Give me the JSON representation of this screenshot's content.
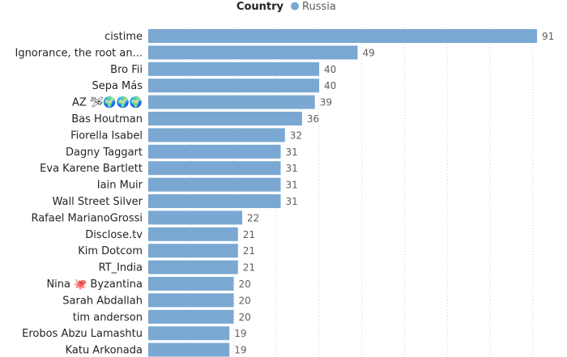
{
  "chart_data": {
    "type": "bar",
    "orientation": "horizontal",
    "legend": {
      "title": "Country",
      "entries": [
        "Russia"
      ],
      "position": "top-center"
    },
    "categories": [
      "cistime",
      "Ignorance, the root an...",
      "Bro Fii",
      "Sepa Más",
      "AZ 🛩🌍🌍🌍",
      "Bas Houtman",
      "Fiorella Isabel",
      "Dagny Taggart",
      "Eva Karene Bartlett",
      "Iain Muir",
      "Wall Street Silver",
      "Rafael MarianoGrossi",
      "Disclose.tv",
      "Kim Dotcom",
      "RT_India",
      "Nina 🐙 Byzantina",
      "Sarah Abdallah",
      "tim anderson",
      "Erobos Abzu Lamashtu",
      "Katu Arkonada"
    ],
    "series": [
      {
        "name": "Russia",
        "color": "#7aa8d2",
        "values": [
          91,
          49,
          40,
          40,
          39,
          36,
          32,
          31,
          31,
          31,
          31,
          22,
          21,
          21,
          21,
          20,
          20,
          20,
          19,
          19
        ]
      }
    ],
    "xlim": [
      0,
      95
    ],
    "grid": true
  },
  "colors": {
    "bar": "#7aa8d2",
    "text": "#252423",
    "value_text": "#605e5c"
  }
}
